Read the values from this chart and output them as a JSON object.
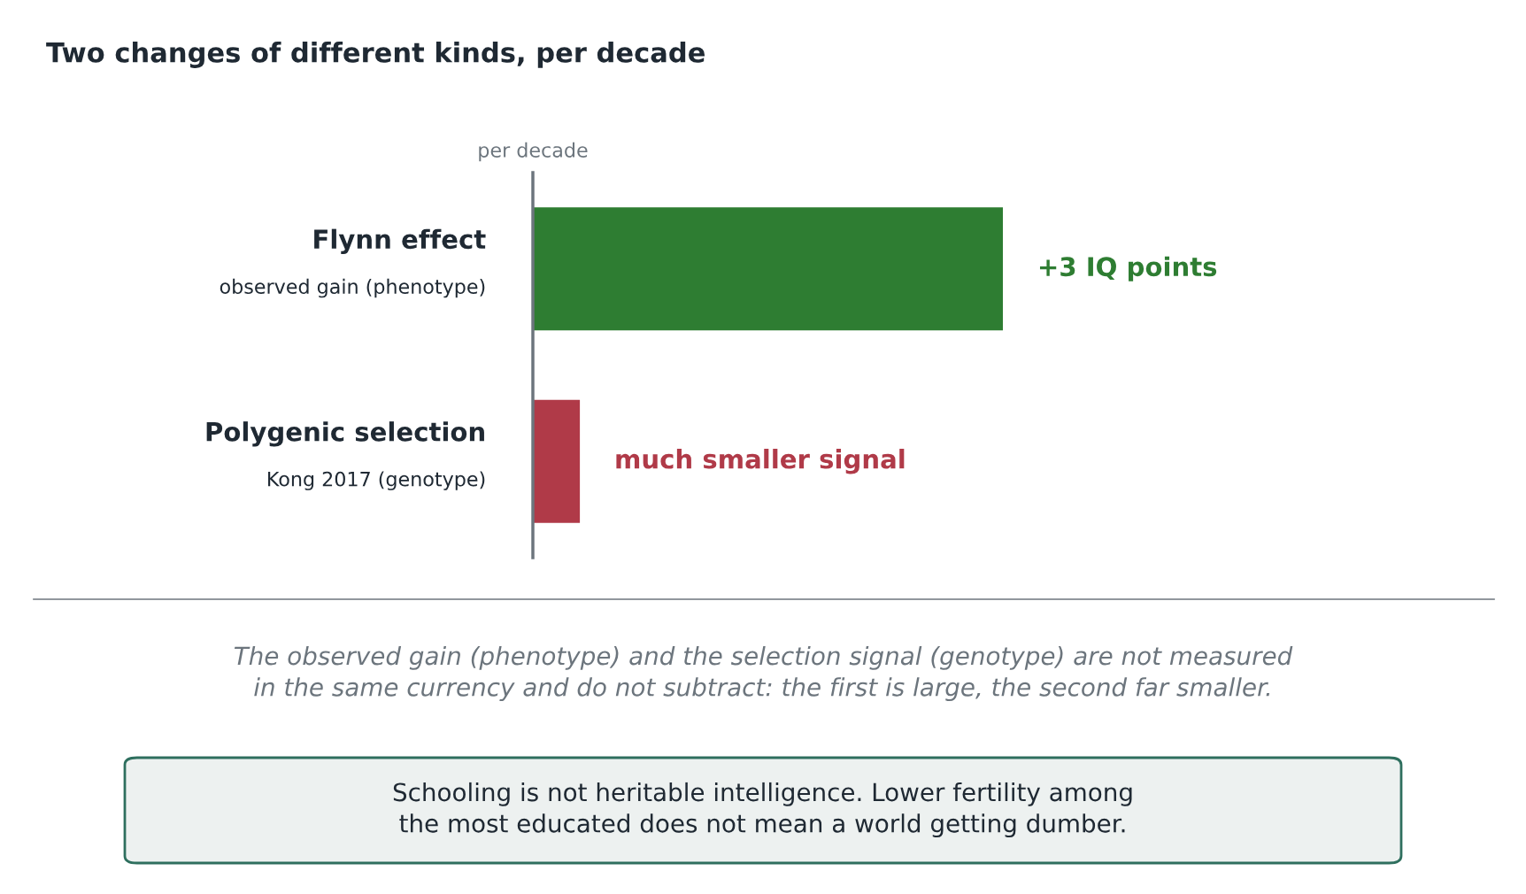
{
  "chart_data": {
    "type": "bar",
    "orientation": "horizontal",
    "xlim": [
      0,
      3
    ],
    "tick_labels": false,
    "title": "Two changes of different kinds, per decade",
    "xlabel": "per decade",
    "categories": [
      "Flynn effect\nobserved gain (phenotype)",
      "Polygenic selection\nKong 2017 (genotype)"
    ],
    "values": [
      3,
      0.3
    ],
    "colors": [
      "#2e7d32",
      "#b03a48"
    ],
    "value_labels": [
      "+3 IQ points",
      "much smaller signal"
    ],
    "legend": false,
    "annotations": [
      "The observed gain (phenotype) and the selection signal (genotype) are not measured\nin the same currency and do not subtract: the first is large, the second far smaller.",
      "Schooling is not heritable intelligence. Lower fertility among\nthe most educated does not mean a world getting dumber."
    ]
  }
}
